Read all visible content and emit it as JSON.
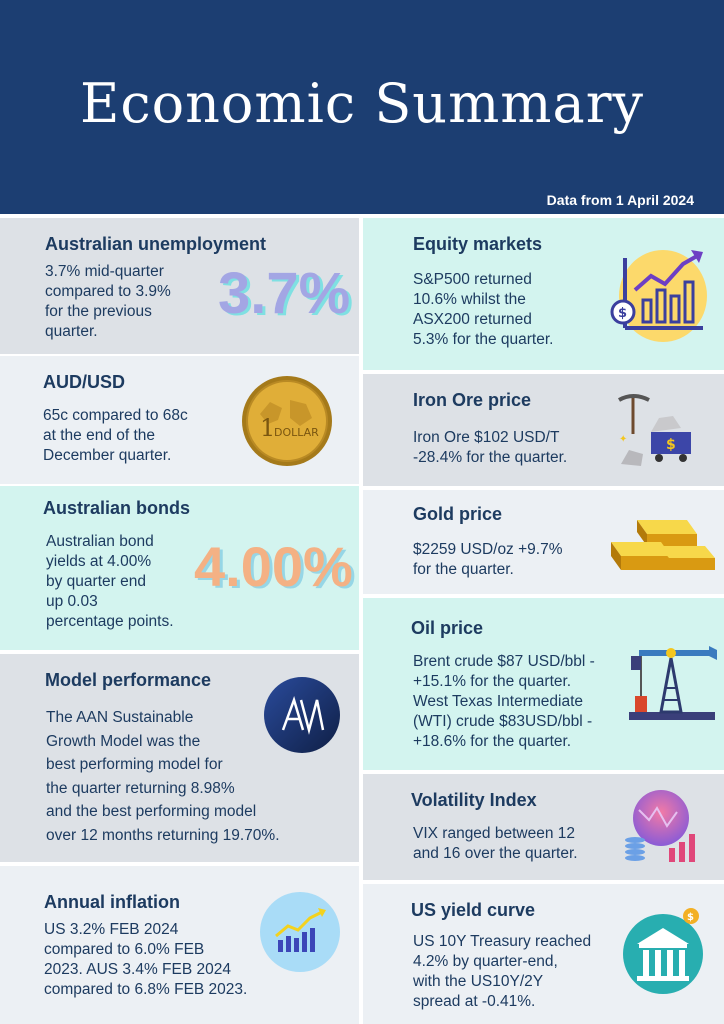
{
  "header": {
    "title": "Economic Summary",
    "subtitle": "Data from 1 April 2024"
  },
  "left": {
    "unemployment": {
      "heading": "Australian unemployment",
      "body": [
        "3.7% mid-quarter",
        "compared to 3.9%",
        "for the previous",
        "quarter."
      ],
      "big_value": "3.7%"
    },
    "audusd": {
      "heading": "AUD/USD",
      "body": [
        "65c compared to 68c",
        "at the end of the",
        "December quarter."
      ],
      "coin_text": "DOLLAR",
      "coin_numeral": "1"
    },
    "bonds": {
      "heading": "Australian bonds",
      "body": [
        "Australian bond",
        "yields at 4.00%",
        "by quarter end",
        "up 0.03",
        "percentage points."
      ],
      "big_value": "4.00%"
    },
    "model": {
      "heading": "Model performance",
      "body": [
        "The AAN Sustainable",
        "Growth Model was the",
        "best performing model for",
        "the quarter returning 8.98%",
        "and the best performing model",
        "over 12 months returning 19.70%."
      ],
      "logo_text": "AAN"
    },
    "inflation": {
      "heading": "Annual inflation",
      "body": [
        "US 3.2% FEB 2024",
        "compared to 6.0% FEB",
        "2023. AUS 3.4% FEB 2024",
        "compared to 6.8% FEB 2023."
      ]
    }
  },
  "right": {
    "equity": {
      "heading": "Equity markets",
      "body": [
        "S&P500 returned",
        "10.6% whilst the",
        "ASX200 returned",
        "5.3% for the quarter."
      ]
    },
    "ironore": {
      "heading": "Iron Ore price",
      "body": [
        "Iron Ore $102 USD/T",
        "-28.4% for the quarter."
      ]
    },
    "gold": {
      "heading": "Gold price",
      "body": [
        "$2259 USD/oz +9.7%",
        "for the quarter."
      ]
    },
    "oil": {
      "heading": "Oil price",
      "body": [
        "Brent crude $87 USD/bbl -",
        "+15.1% for the quarter.",
        "West Texas Intermediate",
        "(WTI) crude $83USD/bbl -",
        "+18.6% for the quarter."
      ]
    },
    "vix": {
      "heading": "Volatility Index",
      "body": [
        "VIX ranged between 12",
        "and 16 over the quarter."
      ]
    },
    "yield": {
      "heading": "US yield curve",
      "body": [
        "US 10Y Treasury reached",
        "4.2% by quarter-end,",
        "with the US10Y/2Y",
        "spread at -0.41%."
      ]
    }
  },
  "icons": {
    "equity": "chart-growth-icon",
    "ironore": "mining-cart-icon",
    "gold": "gold-bars-icon",
    "oil": "oil-pump-icon",
    "vix": "volatility-chart-icon",
    "yield": "bank-icon",
    "inflation": "inflation-chart-icon",
    "coin": "dollar-coin-icon",
    "model": "aan-logo"
  },
  "colors": {
    "header": "#1c3e72",
    "text": "#1d3b60",
    "unemployment_big": "#9aa3e0",
    "bonds_big": "#f4b184"
  }
}
